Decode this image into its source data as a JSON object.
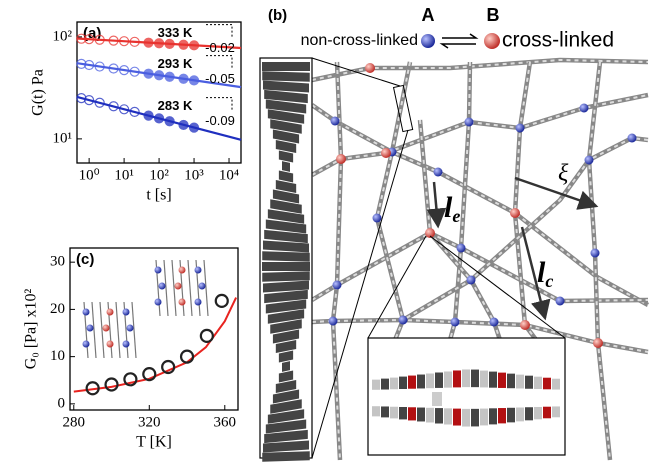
{
  "chart_data": [
    {
      "type": "line",
      "panel": "(a)",
      "xlabel": "t [s]",
      "ylabel": "G(t) Pa",
      "xlog": true,
      "ylog": true,
      "xlim": [
        0.45,
        22000
      ],
      "ylim": [
        5.8,
        140
      ],
      "xticks": [
        {
          "value": 1,
          "label": "10⁰"
        },
        {
          "value": 10,
          "label": "10¹"
        },
        {
          "value": 100,
          "label": "10²"
        },
        {
          "value": 1000,
          "label": "10³"
        },
        {
          "value": 10000,
          "label": "10⁴"
        }
      ],
      "yticks": [
        {
          "value": 10,
          "label": "10¹"
        },
        {
          "value": 100,
          "label": "10²"
        }
      ],
      "x": [
        0.6,
        1,
        2,
        5,
        10,
        20,
        50,
        100,
        200,
        500,
        1000
      ],
      "fit_x": [
        0.45,
        22000
      ],
      "series": [
        {
          "name": "333 K",
          "color": "#e8322e",
          "annotation": "-0.02",
          "values": [
            96.0,
            95,
            93.7,
            92.0,
            90.8,
            89.5,
            87.8,
            86.7,
            85.5,
            83.8,
            82.7
          ],
          "fit_values": [
            96.5,
            77.8
          ]
        },
        {
          "name": "293 K",
          "color": "#4a5ee0",
          "annotation": "-0.05",
          "values": [
            54.4,
            53,
            51.2,
            49.0,
            47.2,
            45.6,
            43.6,
            42.1,
            40.7,
            38.9,
            37.5
          ],
          "fit_values": [
            55.2,
            32.2
          ]
        },
        {
          "name": "283 K",
          "color": "#1f2fbf",
          "annotation": "-0.09",
          "values": [
            25.1,
            24,
            22.6,
            20.9,
            19.5,
            18.4,
            16.9,
            15.9,
            14.9,
            13.7,
            12.9
          ],
          "fit_values": [
            25.8,
            9.8
          ]
        }
      ]
    },
    {
      "type": "scatter",
      "panel": "(c)",
      "xlabel": "T [K]",
      "ylabel": "G₀ [Pa] x10²",
      "xlim": [
        278,
        367
      ],
      "ylim": [
        -1.3,
        33
      ],
      "xticks": [
        280,
        320,
        360
      ],
      "yticks": [
        0,
        10,
        20,
        30
      ],
      "x": [
        290,
        300,
        310,
        320,
        330,
        340,
        350.5,
        358.4
      ],
      "values": [
        3.3,
        4.1,
        5.2,
        6.3,
        7.8,
        10.0,
        14.4,
        21.8
      ],
      "color": "#222222",
      "fit_x": [
        280,
        300,
        320,
        340,
        350,
        360,
        366
      ],
      "fit_values": [
        2.6,
        3.6,
        5.3,
        8.8,
        12.0,
        17.5,
        22.5
      ],
      "fit_color": "#e8231f"
    }
  ],
  "diagram": {
    "panel": "(b)",
    "state_a": "A",
    "state_b": "B",
    "left_label": "non-cross-linked",
    "right_label": "cross-linked",
    "xi": "ξ",
    "le": {
      "main": "l",
      "sub": "e"
    },
    "lc": {
      "main": "l",
      "sub": "c"
    }
  }
}
